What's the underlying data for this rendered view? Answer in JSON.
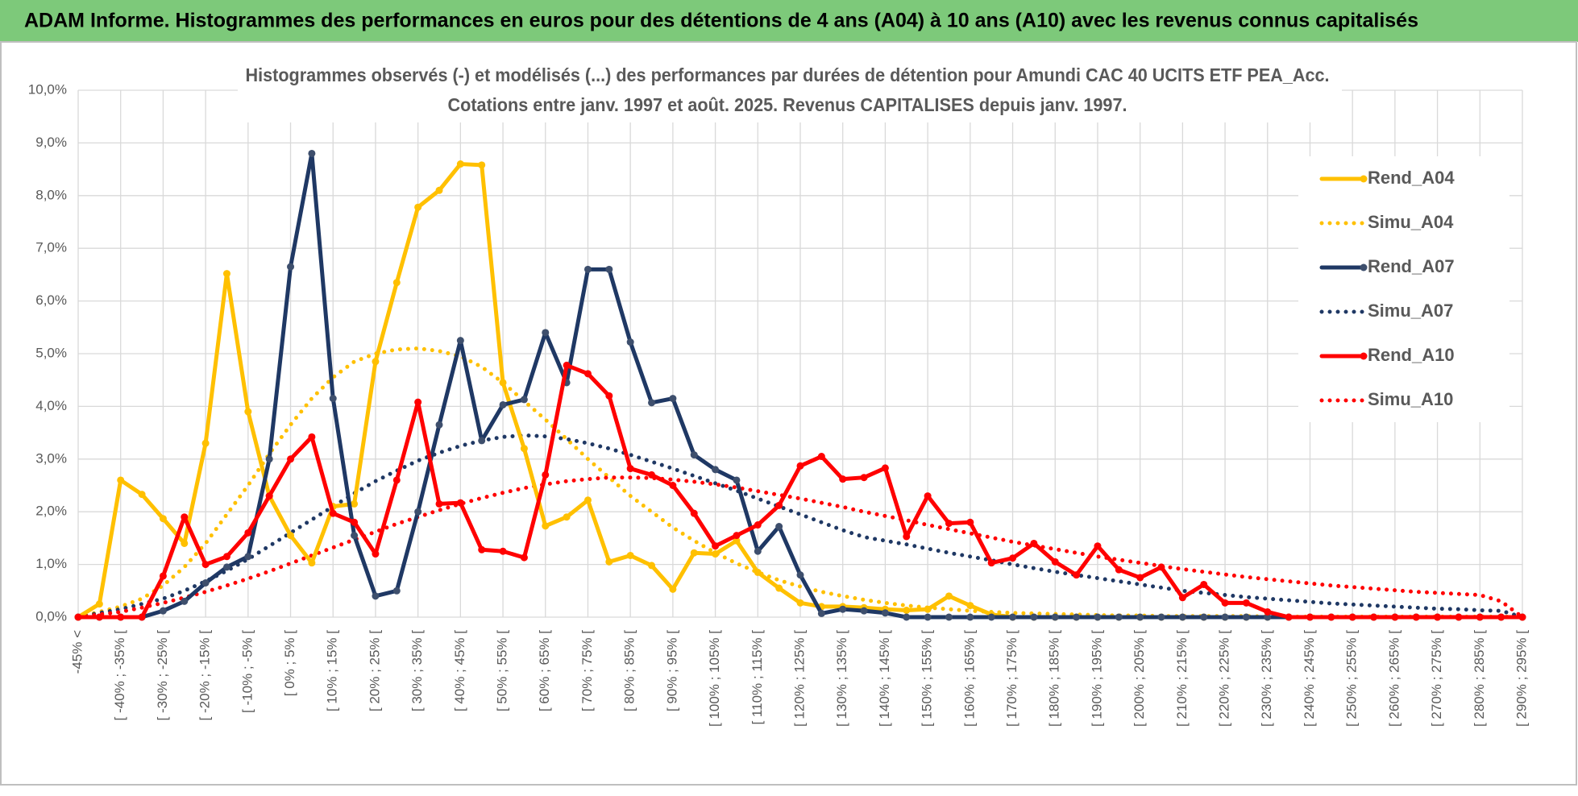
{
  "header": {
    "title": "ADAM Informe. Histogrammes des performances en euros pour des détentions de 4 ans (A04) à 10 ans (A10) avec les revenus connus capitalisés"
  },
  "chart_data": {
    "type": "line",
    "title": [
      "Histogrammes observés (-) et modélisés (...) des performances par durées de détention pour Amundi CAC 40 UCITS ETF PEA_Acc.",
      "Cotations entre janv. 1997 et août. 2025. Revenus CAPITALISES depuis janv. 1997."
    ],
    "categories": [
      "-45% <",
      null,
      "[ -40% ; -35% [",
      null,
      "[ -30% ; -25% [",
      null,
      "[ -20% ; -15% [",
      null,
      "[ -10% ; -5% [",
      null,
      "[ 0% ; 5% [",
      null,
      "[ 10% ; 15% [",
      null,
      "[ 20% ; 25% [",
      null,
      "[ 30% ; 35% [",
      null,
      "[ 40% ; 45% [",
      null,
      "[ 50% ; 55% [",
      null,
      "[ 60% ; 65% [",
      null,
      "[ 70% ; 75% [",
      null,
      "[ 80% ; 85% [",
      null,
      "[ 90% ; 95% [",
      null,
      "[ 100% ; 105% [",
      null,
      "[ 110% ; 115% [",
      null,
      "[ 120% ; 125% [",
      null,
      "[ 130% ; 135% [",
      null,
      "[ 140% ; 145% [",
      null,
      "[ 150% ; 155% [",
      null,
      "[ 160% ; 165% [",
      null,
      "[ 170% ; 175% [",
      null,
      "[ 180% ; 185% [",
      null,
      "[ 190% ; 195% [",
      null,
      "[ 200% ; 205% [",
      null,
      "[ 210% ; 215% [",
      null,
      "[ 220% ; 225% [",
      null,
      "[ 230% ; 235% [",
      null,
      "[ 240% ; 245% [",
      null,
      "[ 250% ; 255% [",
      null,
      "[ 260% ; 265% [",
      null,
      "[ 270% ; 275% [",
      null,
      "[ 280% ; 285% [",
      null,
      "[ 290% ; 295% ["
    ],
    "series": [
      {
        "name": "Rend_A04",
        "color": "#ffc000",
        "style": "solid",
        "values": [
          0,
          0.25,
          2.6,
          2.33,
          1.87,
          1.4,
          3.3,
          6.52,
          3.9,
          2.3,
          1.55,
          1.03,
          2.1,
          2.15,
          4.85,
          6.35,
          7.78,
          8.1,
          8.6,
          8.58,
          4.45,
          3.2,
          1.73,
          1.9,
          2.22,
          1.05,
          1.17,
          0.98,
          0.53,
          1.22,
          1.2,
          1.45,
          0.85,
          0.55,
          0.27,
          0.2,
          0.2,
          0.18,
          0.15,
          0.13,
          0.15,
          0.4,
          0.22,
          0.05,
          0,
          0,
          0,
          0,
          0,
          0,
          0,
          0,
          0,
          0,
          0,
          0,
          0,
          0,
          0,
          0,
          0,
          0,
          0,
          0,
          0,
          0,
          0,
          0,
          0
        ]
      },
      {
        "name": "Simu_A04",
        "color": "#ffc000",
        "style": "dotted",
        "values": [
          0,
          0.1,
          0.2,
          0.35,
          0.6,
          0.95,
          1.4,
          1.95,
          2.5,
          3.1,
          3.65,
          4.15,
          4.55,
          4.85,
          5.0,
          5.08,
          5.1,
          5.05,
          4.95,
          4.75,
          4.45,
          4.1,
          3.75,
          3.38,
          3.0,
          2.65,
          2.3,
          2.0,
          1.7,
          1.45,
          1.22,
          1.02,
          0.85,
          0.7,
          0.58,
          0.48,
          0.4,
          0.33,
          0.27,
          0.22,
          0.18,
          0.15,
          0.12,
          0.1,
          0.08,
          0.07,
          0.06,
          0.05,
          0.04,
          0.03,
          0.03,
          0.02,
          0.02,
          0.02,
          0.02,
          0.02,
          0.01,
          0.01,
          0.01,
          0.01,
          0.01,
          0.01,
          0.01,
          0.01,
          0.01,
          0.01,
          0.01,
          0.01,
          0
        ]
      },
      {
        "name": "Rend_A07",
        "color": "#1f3864",
        "style": "solid",
        "values": [
          0,
          0,
          0,
          0,
          0.12,
          0.3,
          0.65,
          0.95,
          1.15,
          3.0,
          6.65,
          8.8,
          4.15,
          1.55,
          0.4,
          0.5,
          2.0,
          3.65,
          5.25,
          3.35,
          4.03,
          4.13,
          5.4,
          4.45,
          6.6,
          6.6,
          5.22,
          4.07,
          4.15,
          3.08,
          2.8,
          2.6,
          1.25,
          1.72,
          0.8,
          0.07,
          0.15,
          0.12,
          0.08,
          0,
          0,
          0,
          0,
          0,
          0,
          0,
          0,
          0,
          0,
          0,
          0,
          0,
          0,
          0,
          0,
          0,
          0,
          0,
          0,
          0,
          0,
          0,
          0,
          0,
          0,
          0,
          0,
          0,
          0
        ]
      },
      {
        "name": "Simu_A07",
        "color": "#1f3864",
        "style": "dotted",
        "values": [
          0,
          0.08,
          0.15,
          0.25,
          0.35,
          0.5,
          0.68,
          0.88,
          1.1,
          1.35,
          1.6,
          1.85,
          2.1,
          2.35,
          2.58,
          2.78,
          2.97,
          3.12,
          3.25,
          3.35,
          3.42,
          3.45,
          3.43,
          3.38,
          3.3,
          3.2,
          3.08,
          2.95,
          2.82,
          2.68,
          2.54,
          2.4,
          2.25,
          2.1,
          1.95,
          1.8,
          1.65,
          1.52,
          1.45,
          1.38,
          1.3,
          1.22,
          1.15,
          1.08,
          1.0,
          0.93,
          0.86,
          0.8,
          0.74,
          0.68,
          0.62,
          0.56,
          0.5,
          0.46,
          0.42,
          0.38,
          0.35,
          0.32,
          0.29,
          0.26,
          0.24,
          0.22,
          0.2,
          0.18,
          0.16,
          0.15,
          0.13,
          0.12,
          0
        ]
      },
      {
        "name": "Rend_A10",
        "color": "#ff0000",
        "style": "solid",
        "values": [
          0,
          0,
          0,
          0,
          0.78,
          1.9,
          1.0,
          1.15,
          1.6,
          2.3,
          3.0,
          3.42,
          1.97,
          1.8,
          1.2,
          2.6,
          4.08,
          2.15,
          2.17,
          1.28,
          1.25,
          1.13,
          2.7,
          4.78,
          4.62,
          4.2,
          2.82,
          2.7,
          2.5,
          1.97,
          1.35,
          1.55,
          1.75,
          2.12,
          2.87,
          3.05,
          2.62,
          2.65,
          2.83,
          1.53,
          2.3,
          1.78,
          1.8,
          1.03,
          1.12,
          1.4,
          1.05,
          0.8,
          1.35,
          0.9,
          0.75,
          0.95,
          0.37,
          0.62,
          0.27,
          0.27,
          0.1,
          0,
          0,
          0,
          0,
          0,
          0,
          0,
          0,
          0,
          0,
          0,
          0
        ]
      },
      {
        "name": "Simu_A10",
        "color": "#ff0000",
        "style": "dotted",
        "values": [
          0,
          0.05,
          0.1,
          0.18,
          0.27,
          0.37,
          0.48,
          0.6,
          0.73,
          0.87,
          1.02,
          1.17,
          1.32,
          1.47,
          1.62,
          1.77,
          1.9,
          2.03,
          2.15,
          2.26,
          2.36,
          2.45,
          2.52,
          2.58,
          2.62,
          2.65,
          2.65,
          2.64,
          2.61,
          2.57,
          2.52,
          2.46,
          2.39,
          2.32,
          2.25,
          2.17,
          2.09,
          2.0,
          1.92,
          1.84,
          1.75,
          1.67,
          1.59,
          1.51,
          1.43,
          1.36,
          1.29,
          1.22,
          1.15,
          1.09,
          1.03,
          0.97,
          0.91,
          0.86,
          0.81,
          0.76,
          0.72,
          0.68,
          0.64,
          0.6,
          0.57,
          0.54,
          0.51,
          0.48,
          0.46,
          0.44,
          0.42,
          0.3,
          0
        ]
      }
    ],
    "ylim": [
      0,
      10
    ],
    "yticks": [
      {
        "value": 0,
        "label": "0,0%"
      },
      {
        "value": 1,
        "label": "1,0%"
      },
      {
        "value": 2,
        "label": "2,0%"
      },
      {
        "value": 3,
        "label": "3,0%"
      },
      {
        "value": 4,
        "label": "4,0%"
      },
      {
        "value": 5,
        "label": "5,0%"
      },
      {
        "value": 6,
        "label": "6,0%"
      },
      {
        "value": 7,
        "label": "7,0%"
      },
      {
        "value": 8,
        "label": "8,0%"
      },
      {
        "value": 9,
        "label": "9,0%"
      },
      {
        "value": 10,
        "label": "10,0%"
      }
    ],
    "grid": true,
    "legend": "top right"
  }
}
